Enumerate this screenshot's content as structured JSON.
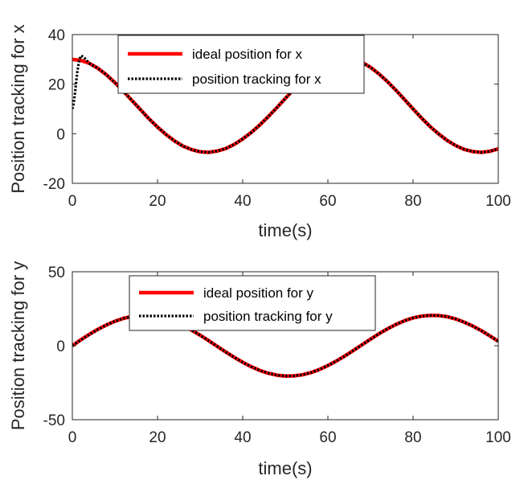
{
  "chart_data": [
    {
      "type": "line",
      "xlabel": "time(s)",
      "ylabel": "Position tracking for x",
      "xlim": [
        0,
        100
      ],
      "ylim": [
        -20,
        40
      ],
      "xticks": [
        0,
        20,
        40,
        60,
        80,
        100
      ],
      "yticks": [
        -20,
        0,
        20,
        40
      ],
      "grid": false,
      "legend_position": "top-center",
      "series": [
        {
          "name": "ideal position for x",
          "color": "#ff0000",
          "style": "solid",
          "x": [
            0,
            2,
            4,
            6,
            8,
            10,
            12,
            14,
            16,
            18,
            20,
            22,
            24,
            26,
            28,
            30,
            32,
            34,
            36,
            38,
            40,
            42,
            44,
            46,
            48,
            50,
            52,
            54,
            56,
            58,
            60,
            62,
            64,
            66,
            68,
            70,
            72,
            74,
            76,
            78,
            80,
            82,
            84,
            86,
            88,
            90,
            92,
            94,
            96,
            98,
            100
          ],
          "y": [
            30.0,
            29.6,
            28.4,
            26.4,
            23.8,
            20.6,
            17.1,
            13.4,
            9.7,
            6.0,
            2.7,
            -0.3,
            -2.9,
            -5.0,
            -6.4,
            -7.3,
            -7.5,
            -7.0,
            -6.0,
            -4.3,
            -2.1,
            0.5,
            3.5,
            6.9,
            10.5,
            14.2,
            17.9,
            21.3,
            24.4,
            26.9,
            28.9,
            30.1,
            30.5,
            30.1,
            28.8,
            26.8,
            24.1,
            21.0,
            17.5,
            13.8,
            10.0,
            6.3,
            2.9,
            -0.1,
            -2.7,
            -4.8,
            -6.3,
            -7.2,
            -7.5,
            -7.1,
            -6.1
          ]
        },
        {
          "name": "position tracking for x",
          "color": "#000000",
          "style": "dotted",
          "x": [
            0,
            0.3,
            0.6,
            0.9,
            1.2,
            1.5,
            1.8,
            2.1,
            2.5,
            3,
            4,
            6,
            8,
            10,
            12,
            14,
            16,
            18,
            20,
            22,
            24,
            26,
            28,
            30,
            32,
            34,
            36,
            38,
            40,
            42,
            44,
            46,
            48,
            50,
            52,
            54,
            56,
            58,
            60,
            62,
            64,
            66,
            68,
            70,
            72,
            74,
            76,
            78,
            80,
            82,
            84,
            86,
            88,
            90,
            92,
            94,
            96,
            98,
            100
          ],
          "y": [
            10,
            12,
            16,
            21,
            25.5,
            28.5,
            30.5,
            31.5,
            31,
            30.3,
            28.4,
            26.4,
            23.8,
            20.6,
            17.1,
            13.4,
            9.7,
            6.0,
            2.7,
            -0.3,
            -2.9,
            -5.0,
            -6.4,
            -7.3,
            -7.5,
            -7.0,
            -6.0,
            -4.3,
            -2.1,
            0.5,
            3.5,
            6.9,
            10.5,
            14.2,
            17.9,
            21.3,
            24.4,
            26.9,
            28.9,
            30.1,
            30.5,
            30.1,
            28.8,
            26.8,
            24.1,
            21.0,
            17.5,
            13.8,
            10.0,
            6.3,
            2.9,
            -0.1,
            -2.7,
            -4.8,
            -6.3,
            -7.2,
            -7.5,
            -7.1,
            -6.1
          ]
        }
      ]
    },
    {
      "type": "line",
      "xlabel": "time(s)",
      "ylabel": "Position tracking for y",
      "xlim": [
        0,
        100
      ],
      "ylim": [
        -50,
        50
      ],
      "xticks": [
        0,
        20,
        40,
        60,
        80,
        100
      ],
      "yticks": [
        -50,
        0,
        50
      ],
      "grid": false,
      "legend_position": "top-center",
      "series": [
        {
          "name": "ideal position for y",
          "color": "#ff0000",
          "style": "solid",
          "x": [
            0,
            2,
            4,
            6,
            8,
            10,
            12,
            14,
            16,
            18,
            20,
            22,
            24,
            26,
            28,
            30,
            32,
            34,
            36,
            38,
            40,
            42,
            44,
            46,
            48,
            50,
            52,
            54,
            56,
            58,
            60,
            62,
            64,
            66,
            68,
            70,
            72,
            74,
            76,
            78,
            80,
            82,
            84,
            86,
            88,
            90,
            92,
            94,
            96,
            98,
            100
          ],
          "y": [
            0.0,
            4.0,
            7.7,
            11.1,
            14.0,
            16.5,
            18.5,
            19.8,
            20.5,
            20.5,
            19.7,
            18.3,
            16.2,
            13.6,
            10.5,
            7.1,
            3.4,
            -0.4,
            -4.2,
            -7.8,
            -11.2,
            -14.2,
            -16.7,
            -18.6,
            -19.9,
            -20.5,
            -20.4,
            -19.7,
            -18.2,
            -16.1,
            -13.4,
            -10.3,
            -6.9,
            -3.2,
            0.6,
            4.4,
            8.1,
            11.4,
            14.4,
            16.9,
            18.8,
            20.0,
            20.5,
            20.4,
            19.6,
            18.1,
            15.9,
            13.3,
            10.2,
            6.7,
            3.0
          ]
        },
        {
          "name": "position tracking for y",
          "color": "#000000",
          "style": "dotted",
          "x": [
            0,
            2,
            4,
            6,
            8,
            10,
            12,
            14,
            16,
            18,
            20,
            22,
            24,
            26,
            28,
            30,
            32,
            34,
            36,
            38,
            40,
            42,
            44,
            46,
            48,
            50,
            52,
            54,
            56,
            58,
            60,
            62,
            64,
            66,
            68,
            70,
            72,
            74,
            76,
            78,
            80,
            82,
            84,
            86,
            88,
            90,
            92,
            94,
            96,
            98,
            100
          ],
          "y": [
            0.0,
            3.8,
            7.5,
            11.0,
            14.0,
            16.5,
            18.5,
            19.8,
            20.5,
            20.5,
            19.7,
            18.3,
            16.2,
            13.6,
            10.5,
            7.1,
            3.4,
            -0.4,
            -4.2,
            -7.8,
            -11.2,
            -14.2,
            -16.7,
            -18.6,
            -19.9,
            -20.5,
            -20.4,
            -19.7,
            -18.2,
            -16.1,
            -13.4,
            -10.3,
            -6.9,
            -3.2,
            0.6,
            4.4,
            8.1,
            11.4,
            14.4,
            16.9,
            18.8,
            20.0,
            20.5,
            20.4,
            19.6,
            18.1,
            15.9,
            13.3,
            10.2,
            6.7,
            3.0
          ]
        }
      ]
    }
  ]
}
